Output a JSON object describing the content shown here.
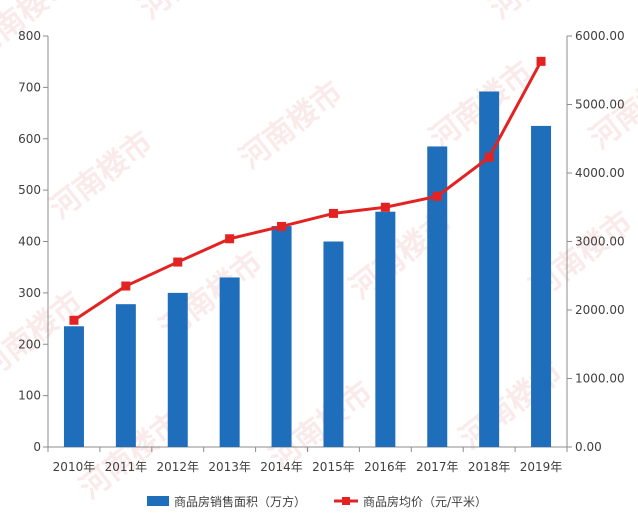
{
  "watermark_text": "河南楼市",
  "chart_data": {
    "type": "bar",
    "categories": [
      "2010年",
      "2011年",
      "2012年",
      "2013年",
      "2014年",
      "2015年",
      "2016年",
      "2017年",
      "2018年",
      "2019年"
    ],
    "series": [
      {
        "name": "商品房销售面积（万方）",
        "type": "bar",
        "axis": "left",
        "color": "#1F6EBB",
        "values": [
          235,
          278,
          300,
          330,
          430,
          400,
          458,
          585,
          692,
          625
        ]
      },
      {
        "name": "商品房均价（元/平米）",
        "type": "line",
        "axis": "right",
        "color": "#E32222",
        "values": [
          1850,
          2350,
          2700,
          3040,
          3220,
          3410,
          3500,
          3660,
          4230,
          5630
        ]
      }
    ],
    "y_left": {
      "min": 0,
      "max": 800,
      "ticks": [
        "0",
        "100",
        "200",
        "300",
        "400",
        "500",
        "600",
        "700",
        "800"
      ]
    },
    "y_right": {
      "min": 0,
      "max": 6000,
      "ticks": [
        "0.00",
        "1000.00",
        "2000.00",
        "3000.00",
        "4000.00",
        "5000.00",
        "6000.00"
      ]
    },
    "grid": false,
    "legend_position": "bottom"
  }
}
